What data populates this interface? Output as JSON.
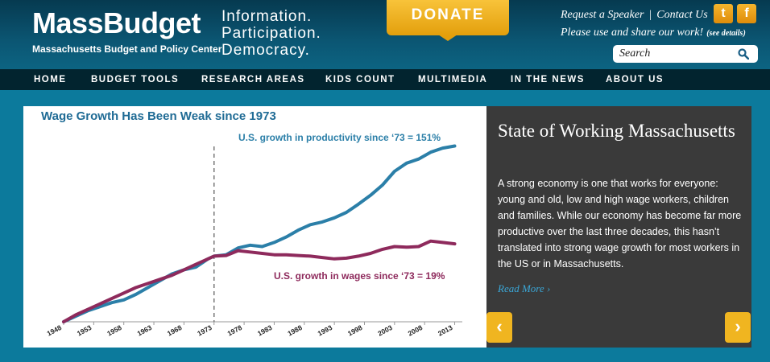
{
  "header": {
    "logo": "MassBudget",
    "logo_sub": "Massachusetts Budget and Policy Center",
    "tagline": [
      "Information.",
      "Participation.",
      "Democracy."
    ],
    "donate": "DONATE",
    "links": {
      "request_speaker": "Request a Speaker",
      "separator": "|",
      "contact": "Contact Us"
    },
    "share_text": "Please use and share our work!",
    "share_details": "(see details)",
    "social": {
      "twitter": "t",
      "facebook": "f"
    },
    "search_placeholder": "Search"
  },
  "nav": [
    "HOME",
    "BUDGET TOOLS",
    "RESEARCH AREAS",
    "KIDS COUNT",
    "MULTIMEDIA",
    "IN THE NEWS",
    "ABOUT US"
  ],
  "slide": {
    "title": "State of Working Massachusetts",
    "text": "A strong economy is one that works for everyone: young and old, low and high wage workers, children and families. While our economy has become far more productive over the last three decades, this hasn’t translated into strong wage growth for most workers in the US or in Massachusetts.",
    "read_more": "Read More",
    "prev_label": "‹",
    "next_label": "›"
  },
  "colors": {
    "productivity": "#2b7fa8",
    "wages": "#8e2a5c",
    "accent": "#f0b520",
    "title": "#1f6b95"
  },
  "chart_data": {
    "type": "line",
    "title": "Wage Growth Has Been Weak since 1973",
    "xlabel": "",
    "ylabel": "",
    "xlim": [
      1948,
      2014
    ],
    "ylim": [
      0,
      260
    ],
    "x_ticks": [
      1948,
      1953,
      1958,
      1963,
      1968,
      1973,
      1978,
      1983,
      1988,
      1993,
      1998,
      2003,
      2008,
      2013
    ],
    "reference_line_x": 1973,
    "annotations": [
      {
        "text": "U.S. growth in productivity since ‘73 = 151%",
        "series": "productivity"
      },
      {
        "text": "U.S. growth in wages since ‘73 = 19%",
        "series": "wages"
      }
    ],
    "series": [
      {
        "name": "productivity",
        "x": [
          1948,
          1950,
          1952,
          1954,
          1956,
          1958,
          1960,
          1962,
          1964,
          1966,
          1968,
          1970,
          1972,
          1973,
          1975,
          1977,
          1979,
          1981,
          1983,
          1985,
          1987,
          1989,
          1991,
          1993,
          1995,
          1997,
          1999,
          2001,
          2003,
          2005,
          2007,
          2009,
          2011,
          2013
        ],
        "values": [
          0,
          8,
          16,
          22,
          28,
          32,
          40,
          50,
          60,
          70,
          76,
          80,
          92,
          96,
          98,
          108,
          112,
          110,
          116,
          124,
          134,
          142,
          146,
          152,
          160,
          172,
          185,
          200,
          220,
          232,
          238,
          248,
          254,
          257
        ]
      },
      {
        "name": "wages",
        "x": [
          1948,
          1950,
          1952,
          1954,
          1956,
          1958,
          1960,
          1962,
          1964,
          1966,
          1968,
          1970,
          1972,
          1973,
          1975,
          1977,
          1979,
          1981,
          1983,
          1985,
          1987,
          1989,
          1991,
          1993,
          1995,
          1997,
          1999,
          2001,
          2003,
          2005,
          2007,
          2009,
          2011,
          2013
        ],
        "values": [
          0,
          10,
          18,
          26,
          34,
          42,
          50,
          56,
          62,
          68,
          76,
          84,
          92,
          96,
          97,
          104,
          102,
          100,
          98,
          98,
          97,
          96,
          94,
          92,
          93,
          96,
          100,
          106,
          110,
          109,
          110,
          118,
          116,
          114
        ]
      }
    ]
  }
}
